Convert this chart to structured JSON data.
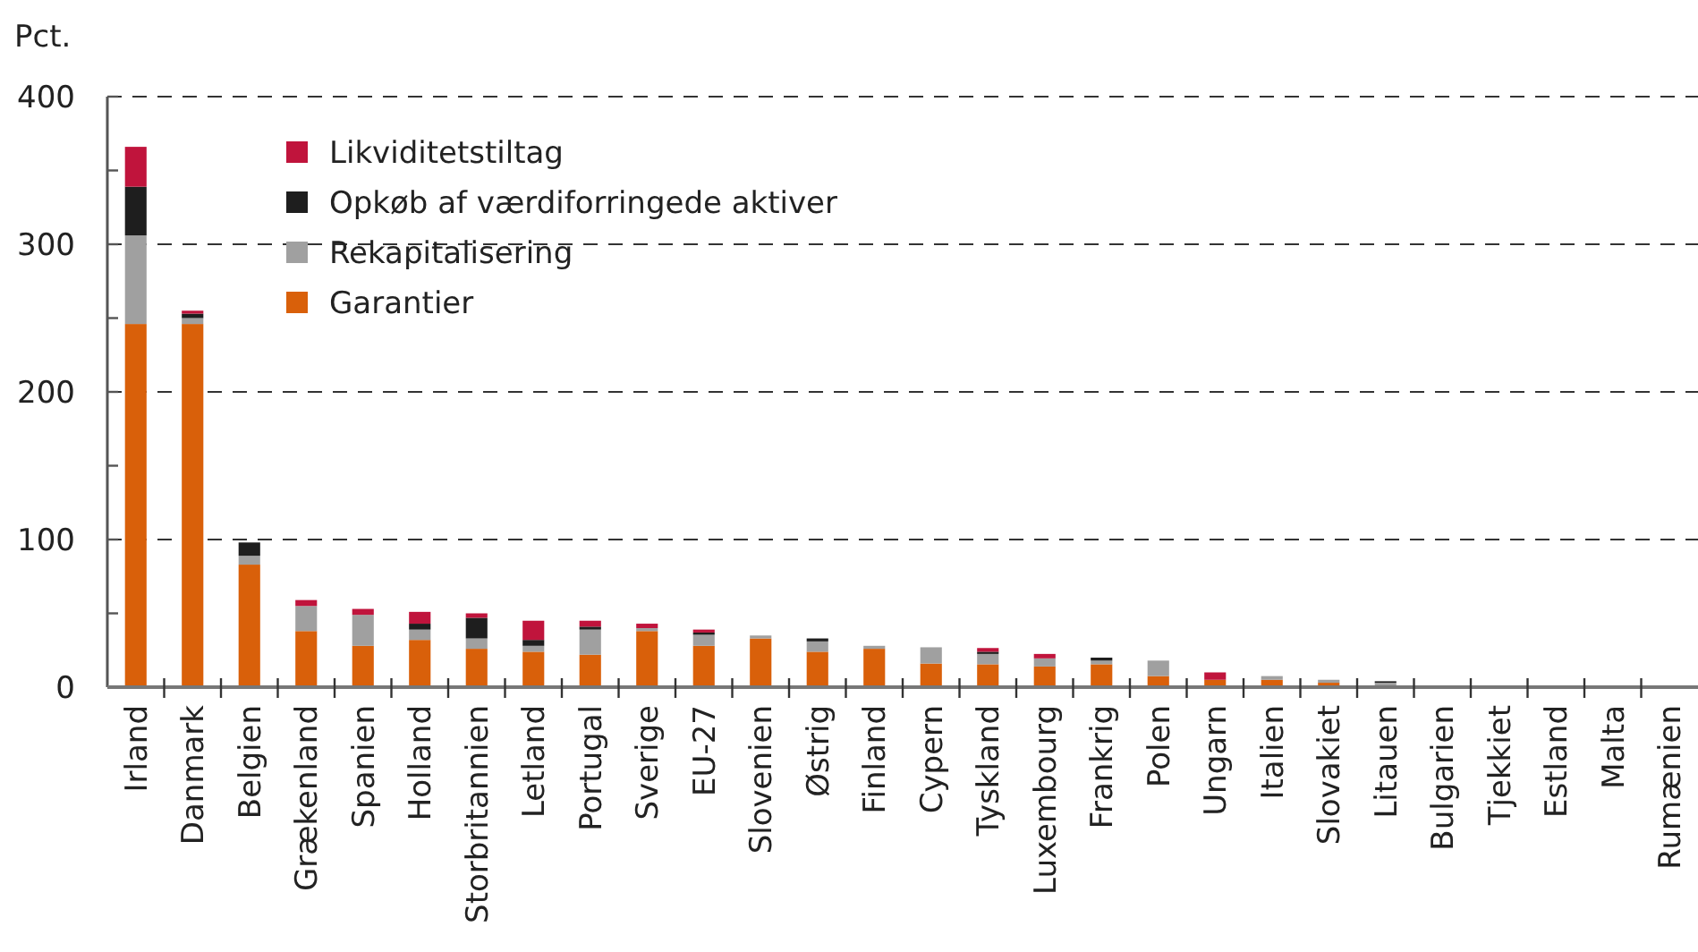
{
  "chart_data": {
    "type": "bar",
    "stacked": true,
    "ylabel": "Pct.",
    "categories": [
      "Irland",
      "Danmark",
      "Belgien",
      "Grækenland",
      "Spanien",
      "Holland",
      "Storbritannien",
      "Letland",
      "Portugal",
      "Sverige",
      "EU-27",
      "Slovenien",
      "Østrig",
      "Finland",
      "Cypern",
      "Tyskland",
      "Luxembourg",
      "Frankrig",
      "Polen",
      "Ungarn",
      "Italien",
      "Slovakiet",
      "Litauen",
      "Bulgarien",
      "Tjekkiet",
      "Estland",
      "Malta",
      "Rumænien"
    ],
    "series": [
      {
        "name": "Garantier",
        "color": "#d9600a",
        "values": [
          246,
          246,
          83,
          38,
          28,
          32,
          26,
          24,
          22,
          38,
          28,
          33,
          24,
          26,
          16,
          15.5,
          14,
          15.5,
          7.5,
          5,
          5,
          3,
          1,
          0,
          0,
          0,
          0,
          0
        ]
      },
      {
        "name": "Rekapitalisering",
        "color": "#a0a0a0",
        "values": [
          60,
          4,
          6,
          17,
          21,
          7,
          7,
          4,
          17,
          2,
          7.5,
          2,
          7,
          2,
          11,
          7,
          5.5,
          2.5,
          10.5,
          0,
          2.5,
          2,
          2,
          0,
          0,
          0,
          0,
          0
        ]
      },
      {
        "name": "Opkøb af værdiforringede aktiver",
        "color": "#1e1e1e",
        "values": [
          33,
          3,
          9,
          0,
          0,
          4,
          14,
          4,
          2,
          0,
          1.5,
          0,
          2,
          0,
          0,
          1.5,
          0,
          2,
          0,
          0,
          0,
          0,
          1,
          0,
          0,
          0,
          0,
          0
        ]
      },
      {
        "name": "Likviditetstiltag",
        "color": "#c0143c",
        "values": [
          27,
          2,
          0,
          4,
          4,
          8,
          3,
          13,
          4,
          3,
          2,
          0,
          0,
          0,
          0,
          2.5,
          3,
          0,
          0,
          5,
          0,
          0,
          0,
          0,
          0,
          0,
          0,
          0
        ]
      }
    ],
    "ylim": [
      0,
      400
    ],
    "yticks": [
      0,
      {
        "value": 50,
        "label": null
      },
      100,
      {
        "value": 150,
        "label": null
      },
      200,
      {
        "value": 250,
        "label": null
      },
      300,
      {
        "value": 350,
        "label": null
      },
      400
    ],
    "grid": "y",
    "legend": "top left"
  }
}
